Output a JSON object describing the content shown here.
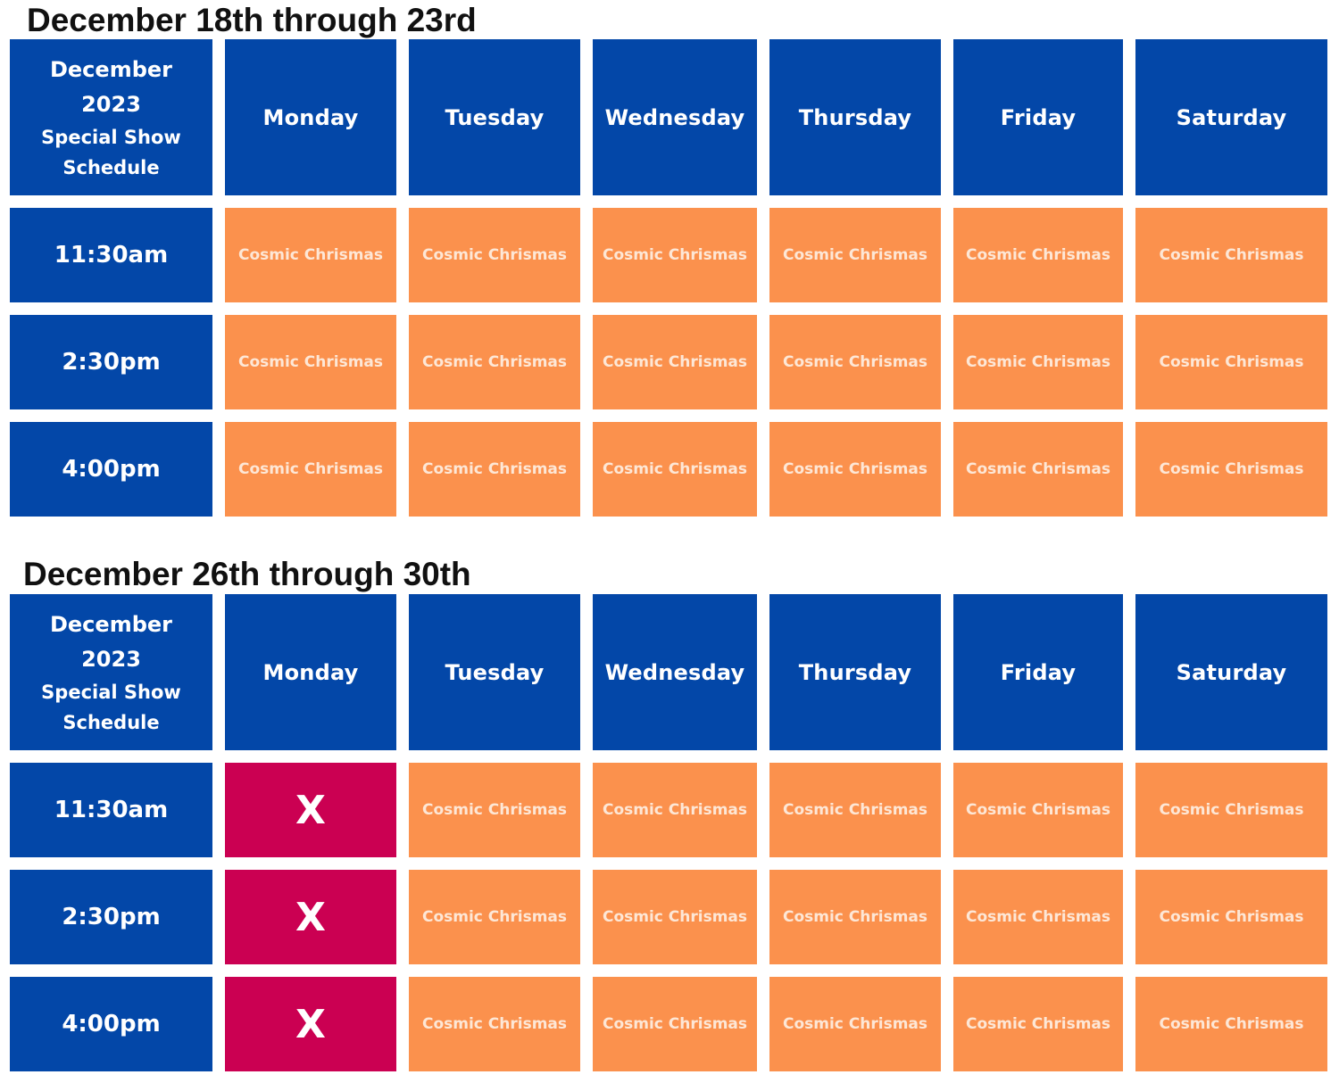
{
  "weeks": [
    {
      "title": "December 18th through 23rd",
      "corner": [
        "December",
        "2023",
        "Special Show",
        "Schedule"
      ],
      "days": [
        "Monday",
        "Tuesday",
        "Wednesday",
        "Thursday",
        "Friday",
        "Saturday"
      ],
      "rows": [
        {
          "time": "11:30am",
          "cells": [
            "Cosmic Chrismas",
            "Cosmic Chrismas",
            "Cosmic Chrismas",
            "Cosmic Chrismas",
            "Cosmic Chrismas",
            "Cosmic Chrismas"
          ]
        },
        {
          "time": "2:30pm",
          "cells": [
            "Cosmic Chrismas",
            "Cosmic Chrismas",
            "Cosmic Chrismas",
            "Cosmic Chrismas",
            "Cosmic Chrismas",
            "Cosmic Chrismas"
          ]
        },
        {
          "time": "4:00pm",
          "cells": [
            "Cosmic Chrismas",
            "Cosmic Chrismas",
            "Cosmic Chrismas",
            "Cosmic Chrismas",
            "Cosmic Chrismas",
            "Cosmic Chrismas"
          ]
        }
      ]
    },
    {
      "title": "December 26th through 30th",
      "corner": [
        "December",
        "2023",
        "Special Show",
        "Schedule"
      ],
      "days": [
        "Monday",
        "Tuesday",
        "Wednesday",
        "Thursday",
        "Friday",
        "Saturday"
      ],
      "rows": [
        {
          "time": "11:30am",
          "cells": [
            "X",
            "Cosmic Chrismas",
            "Cosmic Chrismas",
            "Cosmic Chrismas",
            "Cosmic Chrismas",
            "Cosmic Chrismas"
          ]
        },
        {
          "time": "2:30pm",
          "cells": [
            "X",
            "Cosmic Chrismas",
            "Cosmic Chrismas",
            "Cosmic Chrismas",
            "Cosmic Chrismas",
            "Cosmic Chrismas"
          ]
        },
        {
          "time": "4:00pm",
          "cells": [
            "X",
            "Cosmic Chrismas",
            "Cosmic Chrismas",
            "Cosmic Chrismas",
            "Cosmic Chrismas",
            "Cosmic Chrismas"
          ]
        }
      ]
    }
  ],
  "colors": {
    "header_blue": "#0347a8",
    "show_orange": "#fb914d",
    "closed_red": "#cb0052"
  }
}
